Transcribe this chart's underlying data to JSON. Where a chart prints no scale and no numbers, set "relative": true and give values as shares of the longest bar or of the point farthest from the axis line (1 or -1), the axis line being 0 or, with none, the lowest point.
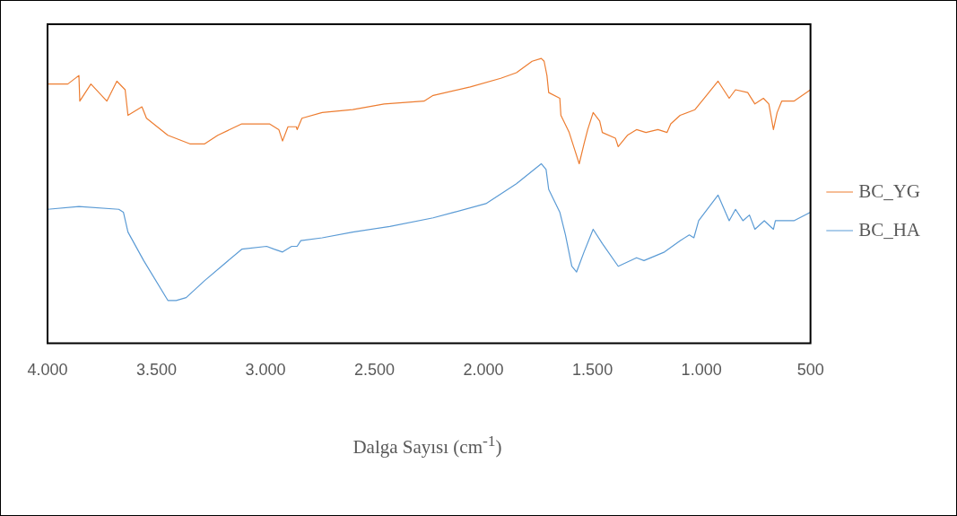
{
  "chart_data": {
    "type": "line",
    "relative": true,
    "xlabel": "Dalga Sayısı (cm$^{-1}$)",
    "xlim": [
      4000,
      500
    ],
    "xticks": [
      {
        "value": 4000,
        "label": "4.000"
      },
      {
        "value": 3500,
        "label": "3.500"
      },
      {
        "value": 3000,
        "label": "3.000"
      },
      {
        "value": 2500,
        "label": "2.500"
      },
      {
        "value": 2000,
        "label": "2.000"
      },
      {
        "value": 1500,
        "label": "1.500"
      },
      {
        "value": 1000,
        "label": "1.000"
      },
      500
    ],
    "grid": false,
    "legend": "right",
    "marker": "none",
    "line_style": "solid",
    "series": [
      {
        "name": "BC_YG",
        "color": "#ed7d31",
        "x": [
          4000,
          3907,
          3856,
          3852,
          3801,
          3728,
          3682,
          3644,
          3631,
          3567,
          3546,
          3448,
          3347,
          3279,
          3219,
          3109,
          3024,
          2982,
          2939,
          2922,
          2897,
          2859,
          2855,
          2833,
          2740,
          2600,
          2456,
          2273,
          2231,
          2061,
          1921,
          1849,
          1777,
          1735,
          1722,
          1709,
          1701,
          1650,
          1645,
          1607,
          1582,
          1561,
          1539,
          1522,
          1497,
          1467,
          1455,
          1395,
          1382,
          1340,
          1298,
          1255,
          1200,
          1158,
          1141,
          1098,
          1030,
          988,
          924,
          873,
          844,
          788,
          755,
          716,
          691,
          670,
          653,
          632,
          576,
          500
        ],
        "values": [
          0.91,
          0.91,
          0.94,
          0.85,
          0.91,
          0.85,
          0.92,
          0.89,
          0.8,
          0.83,
          0.79,
          0.73,
          0.7,
          0.7,
          0.73,
          0.77,
          0.77,
          0.77,
          0.75,
          0.71,
          0.76,
          0.76,
          0.75,
          0.79,
          0.81,
          0.82,
          0.84,
          0.85,
          0.87,
          0.9,
          0.93,
          0.95,
          0.99,
          1.0,
          0.99,
          0.94,
          0.88,
          0.86,
          0.8,
          0.74,
          0.68,
          0.63,
          0.7,
          0.75,
          0.81,
          0.78,
          0.74,
          0.72,
          0.69,
          0.73,
          0.75,
          0.74,
          0.75,
          0.74,
          0.77,
          0.8,
          0.82,
          0.86,
          0.92,
          0.86,
          0.89,
          0.88,
          0.84,
          0.86,
          0.84,
          0.75,
          0.81,
          0.85,
          0.85,
          0.89
        ]
      },
      {
        "name": "BC_HA",
        "color": "#5b9bd5",
        "x": [
          4000,
          3856,
          3673,
          3652,
          3631,
          3559,
          3448,
          3410,
          3364,
          3279,
          3109,
          2995,
          2961,
          2922,
          2880,
          2855,
          2838,
          2740,
          2600,
          2430,
          2231,
          2133,
          1989,
          1849,
          1735,
          1713,
          1701,
          1650,
          1624,
          1595,
          1573,
          1539,
          1497,
          1455,
          1382,
          1298,
          1264,
          1170,
          1098,
          1056,
          1035,
          1013,
          924,
          873,
          844,
          810,
          780,
          755,
          712,
          670,
          661,
          576,
          500
        ],
        "values": [
          0.47,
          0.48,
          0.47,
          0.46,
          0.39,
          0.29,
          0.15,
          0.15,
          0.16,
          0.22,
          0.33,
          0.34,
          0.33,
          0.32,
          0.34,
          0.34,
          0.36,
          0.37,
          0.39,
          0.41,
          0.44,
          0.46,
          0.49,
          0.56,
          0.63,
          0.61,
          0.54,
          0.46,
          0.38,
          0.27,
          0.25,
          0.32,
          0.4,
          0.35,
          0.27,
          0.3,
          0.29,
          0.32,
          0.36,
          0.38,
          0.37,
          0.43,
          0.52,
          0.43,
          0.47,
          0.43,
          0.45,
          0.4,
          0.43,
          0.4,
          0.43,
          0.43,
          0.46
        ]
      }
    ]
  }
}
